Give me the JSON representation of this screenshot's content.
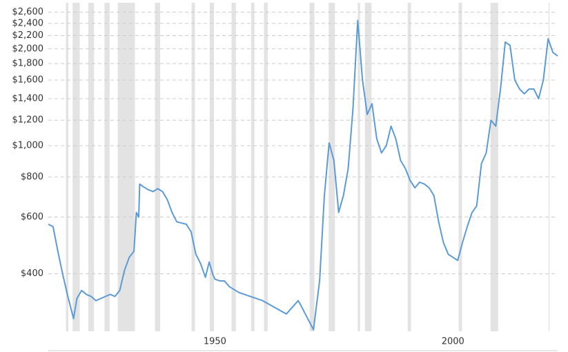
{
  "chart_data": {
    "type": "line",
    "log_scale": true,
    "grid": true,
    "xlim": [
      1915,
      2022
    ],
    "xticks": [
      1950,
      2000
    ],
    "ylim": [
      265,
      2700
    ],
    "yticks": [
      {
        "value": 400,
        "label": "$400"
      },
      {
        "value": 600,
        "label": "$600"
      },
      {
        "value": 800,
        "label": "$800"
      },
      {
        "value": 1000,
        "label": "$1,000"
      },
      {
        "value": 1200,
        "label": "$1,200"
      },
      {
        "value": 1400,
        "label": "$1,400"
      },
      {
        "value": 1600,
        "label": "$1,600"
      },
      {
        "value": 1800,
        "label": "$1,800"
      },
      {
        "value": 2000,
        "label": "$2,000"
      },
      {
        "value": 2200,
        "label": "$2,200"
      },
      {
        "value": 2400,
        "label": "$2,400"
      },
      {
        "value": 2600,
        "label": "$2,600"
      }
    ],
    "recession_color": "#e3e3e3",
    "recessions": [
      [
        1918.7,
        1919.2
      ],
      [
        1920.1,
        1921.6
      ],
      [
        1923.4,
        1924.6
      ],
      [
        1926.8,
        1927.9
      ],
      [
        1929.6,
        1933.2
      ],
      [
        1937.4,
        1938.5
      ],
      [
        1945.1,
        1945.8
      ],
      [
        1948.9,
        1949.8
      ],
      [
        1953.5,
        1954.4
      ],
      [
        1957.6,
        1958.3
      ],
      [
        1960.3,
        1961.1
      ],
      [
        1969.9,
        1970.9
      ],
      [
        1973.9,
        1975.2
      ],
      [
        1980.0,
        1980.5
      ],
      [
        1981.5,
        1982.9
      ],
      [
        1990.5,
        1991.2
      ],
      [
        2001.2,
        2001.9
      ],
      [
        2007.9,
        2009.5
      ],
      [
        2020.1,
        2020.3
      ]
    ],
    "series": [
      {
        "color": "#5b9bd5",
        "x": [
          1915,
          1916,
          1917,
          1918,
          1919,
          1920.3,
          1921,
          1922,
          1923,
          1924,
          1925,
          1926,
          1927,
          1928,
          1929,
          1930,
          1931,
          1932,
          1933,
          1933.5,
          1934,
          1934.2,
          1935,
          1936,
          1937,
          1938,
          1939,
          1940,
          1941,
          1942,
          1943,
          1944,
          1945,
          1946,
          1947,
          1948,
          1948.8,
          1949.5,
          1950,
          1951,
          1952,
          1953,
          1955,
          1960,
          1965,
          1967.5,
          1968,
          1969,
          1970.7,
          1972,
          1973,
          1974,
          1975,
          1976,
          1977,
          1978,
          1979,
          1980,
          1981,
          1982,
          1983,
          1984,
          1985,
          1986,
          1987,
          1988,
          1989,
          1990,
          1991,
          1992,
          1993,
          1994,
          1995,
          1996,
          1997,
          1998,
          1999,
          2000,
          2001,
          2002,
          2003,
          2004,
          2005,
          2006,
          2007,
          2008,
          2009,
          2010,
          2011,
          2012,
          2013,
          2014,
          2015,
          2016,
          2017,
          2018,
          2019,
          2020,
          2021,
          2022
        ],
        "values": [
          570,
          560,
          470,
          400,
          345,
          290,
          335,
          355,
          345,
          340,
          330,
          335,
          340,
          345,
          340,
          355,
          410,
          450,
          470,
          620,
          600,
          760,
          745,
          730,
          720,
          735,
          720,
          680,
          620,
          580,
          575,
          570,
          540,
          460,
          430,
          390,
          435,
          400,
          385,
          380,
          380,
          365,
          350,
          330,
          300,
          330,
          320,
          300,
          268,
          380,
          700,
          1020,
          900,
          620,
          700,
          850,
          1300,
          2450,
          1600,
          1250,
          1350,
          1050,
          950,
          1000,
          1150,
          1050,
          900,
          850,
          780,
          740,
          770,
          760,
          740,
          700,
          580,
          500,
          460,
          450,
          440,
          500,
          560,
          620,
          650,
          880,
          950,
          1200,
          1150,
          1500,
          2100,
          2050,
          1600,
          1500,
          1450,
          1500,
          1500,
          1400,
          1600,
          2150,
          1950,
          1900
        ]
      }
    ]
  }
}
